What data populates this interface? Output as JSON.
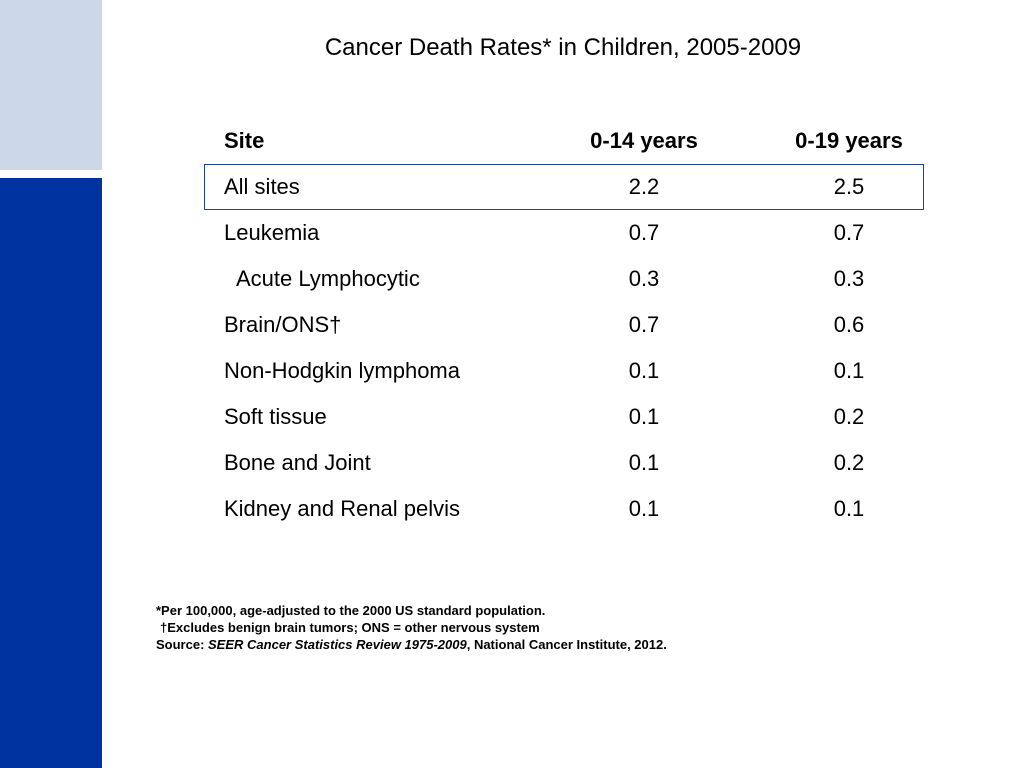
{
  "slide": {
    "title": "Cancer Death Rates* in Children, 2005-2009",
    "accent_colors": {
      "band_top": "#cdd7ea",
      "band_bottom": "#0033a0",
      "highlight_border": "#1e3f9a"
    }
  },
  "table": {
    "headers": [
      "Site",
      "0-14 years",
      "0-19 years"
    ],
    "rows": [
      {
        "site": "All sites",
        "a": "2.2",
        "b": "2.5"
      },
      {
        "site": "Leukemia",
        "a": "0.7",
        "b": "0.7"
      },
      {
        "site": "Acute Lymphocytic",
        "a": "0.3",
        "b": "0.3"
      },
      {
        "site": "Brain/ONS†",
        "a": "0.7",
        "b": "0.6"
      },
      {
        "site": "Non-Hodgkin lymphoma",
        "a": "0.1",
        "b": "0.1"
      },
      {
        "site": "Soft tissue",
        "a": "0.1",
        "b": "0.2"
      },
      {
        "site": "Bone and Joint",
        "a": "0.1",
        "b": "0.2"
      },
      {
        "site": "Kidney and Renal pelvis",
        "a": "0.1",
        "b": "0.1"
      }
    ]
  },
  "footnotes": {
    "per": "*Per 100,000, age-adjusted to the 2000 US standard population.",
    "dagger": "†Excludes benign brain tumors; ONS = other nervous system",
    "source_label": "Source: ",
    "source_title": "SEER Cancer Statistics Review 1975-2009",
    "source_rest": ", National Cancer Institute, 2012."
  }
}
